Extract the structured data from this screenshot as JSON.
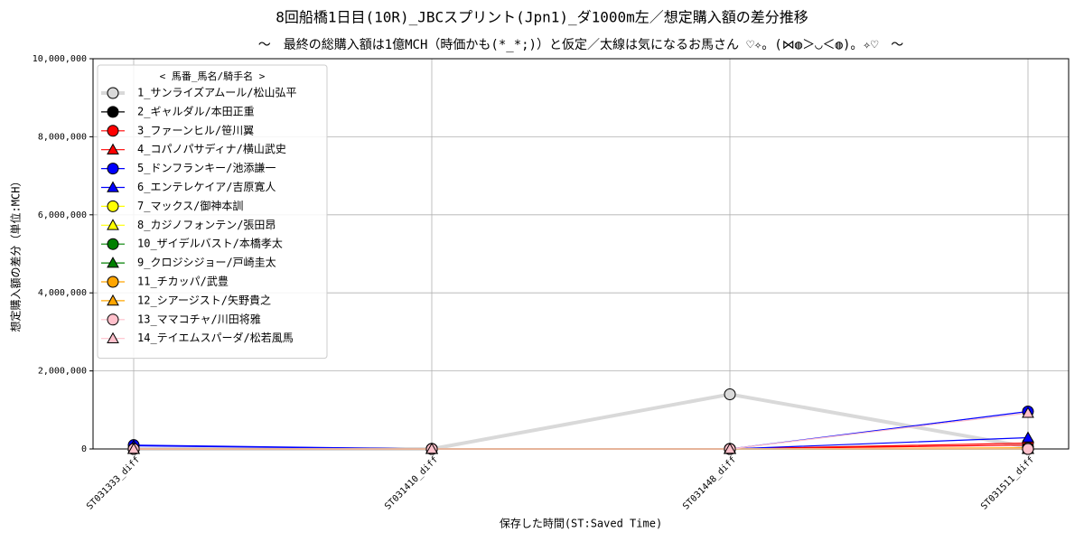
{
  "chart_data": {
    "type": "line",
    "title": "8回船橋1日目(10R)_JBCスプリント(Jpn1)_ダ1000m左／想定購入額の差分推移",
    "subtitle": "～　最終の総購入額は1億MCH（時価かも(*_*;)）と仮定／太線は気になるお馬さん ♡✧。(⋈◍＞◡＜◍)。✧♡　～",
    "xlabel": "保存した時間(ST:Saved Time)",
    "ylabel": "想定購入額の差分（単位:MCH）",
    "legend_title": "< 馬番_馬名/騎手名 >",
    "legend": "upper left",
    "grid": true,
    "categories": [
      "ST031333_diff",
      "ST031410_diff",
      "ST031448_diff",
      "ST031511_diff"
    ],
    "ylim": [
      0,
      10000000
    ],
    "yticks": [
      0,
      {
        "value": 2000000,
        "label": "2,000,000"
      },
      {
        "value": 4000000,
        "label": "4,000,000"
      },
      {
        "value": 6000000,
        "label": "6,000,000"
      },
      {
        "value": 8000000,
        "label": "8,000,000"
      },
      {
        "value": 10000000,
        "label": "10,000,000"
      }
    ],
    "series": [
      {
        "name": "1_サンライズアムール/松山弘平",
        "color": "#d9d9d9",
        "marker": "circle",
        "linewidth": 4,
        "values": [
          0,
          0,
          1400000,
          50000
        ]
      },
      {
        "name": "2_ギャルダル/本田正重",
        "color": "#000000",
        "marker": "circle",
        "values": [
          0,
          0,
          0,
          0
        ]
      },
      {
        "name": "3_ファーンヒル/笹川翼",
        "color": "#ff0000",
        "marker": "circle",
        "values": [
          0,
          0,
          0,
          150000
        ]
      },
      {
        "name": "4_コパノパサディナ/横山武史",
        "color": "#ff0000",
        "marker": "triangle",
        "values": [
          0,
          0,
          0,
          100000
        ]
      },
      {
        "name": "5_ドンフランキー/池添謙一",
        "color": "#0000ff",
        "marker": "circle",
        "values": [
          100000,
          0,
          0,
          960000
        ]
      },
      {
        "name": "6_エンテレケイア/吉原寛人",
        "color": "#0000ff",
        "marker": "triangle",
        "values": [
          80000,
          0,
          0,
          290000
        ]
      },
      {
        "name": "7_マックス/御神本訓",
        "color": "#ffff00",
        "marker": "circle",
        "values": [
          0,
          0,
          0,
          0
        ]
      },
      {
        "name": "8_カジノフォンテン/張田昂",
        "color": "#ffff00",
        "marker": "triangle",
        "values": [
          0,
          0,
          0,
          0
        ]
      },
      {
        "name": "10_ザイデルバスト/本橋孝太",
        "color": "#008000",
        "marker": "circle",
        "values": [
          0,
          0,
          0,
          0
        ]
      },
      {
        "name": "9_クロジシジョー/戸崎圭太",
        "color": "#008000",
        "marker": "triangle",
        "values": [
          0,
          0,
          0,
          0
        ]
      },
      {
        "name": "11_チカッパ/武豊",
        "color": "#ffa500",
        "marker": "circle",
        "values": [
          0,
          0,
          0,
          30000
        ]
      },
      {
        "name": "12_シアージスト/矢野貴之",
        "color": "#ffa500",
        "marker": "triangle",
        "values": [
          0,
          0,
          0,
          0
        ]
      },
      {
        "name": "13_ママコチャ/川田将雅",
        "color": "#ffc0cb",
        "marker": "circle",
        "values": [
          0,
          0,
          0,
          0
        ]
      },
      {
        "name": "14_テイエムスパーダ/松若風馬",
        "color": "#ffc0cb",
        "marker": "triangle",
        "values": [
          0,
          0,
          0,
          920000
        ]
      }
    ]
  }
}
